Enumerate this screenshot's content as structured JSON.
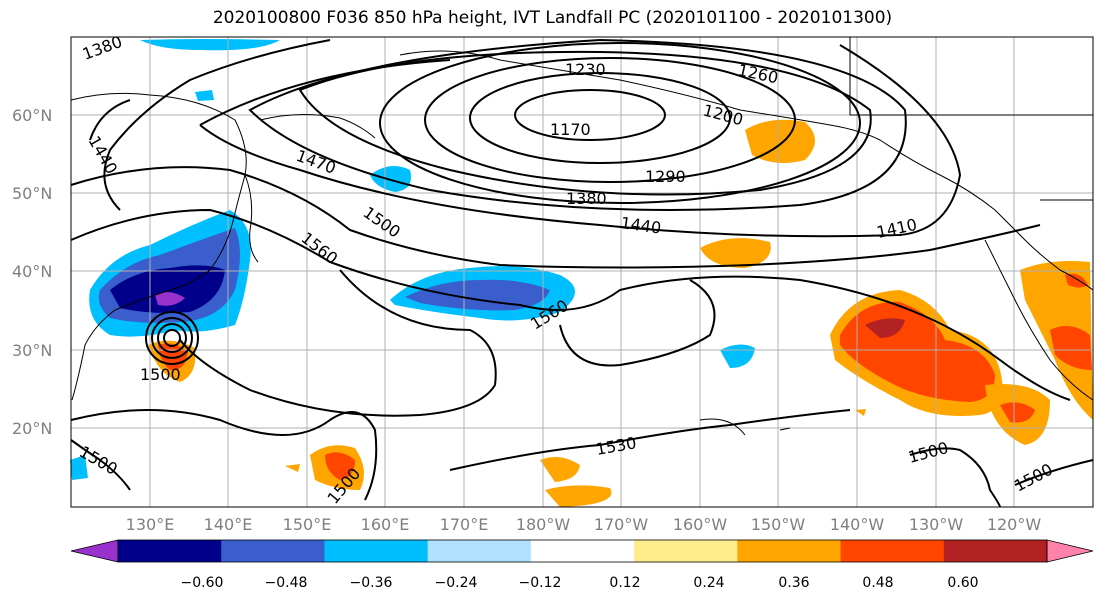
{
  "title": "2020100800 F036 850 hPa height, IVT Landfall PC (2020101100 - 2020101300)",
  "lat_labels": [
    "60°N",
    "50°N",
    "40°N",
    "30°N",
    "20°N"
  ],
  "lon_labels": [
    "130°E",
    "140°E",
    "150°E",
    "160°E",
    "170°E",
    "180°W",
    "170°W",
    "160°W",
    "150°W",
    "140°W",
    "130°W",
    "120°W"
  ],
  "contour_labels": [
    "1380",
    "1230",
    "1260",
    "1170",
    "1200",
    "1290",
    "1440",
    "1470",
    "1500",
    "1560",
    "1380",
    "1440",
    "1410",
    "1560",
    "1500",
    "1530",
    "1500",
    "1500",
    "1500",
    "1500"
  ],
  "colorbar": {
    "ticks": [
      "−0.60",
      "−0.48",
      "−0.36",
      "−0.24",
      "−0.12",
      "0.12",
      "0.24",
      "0.36",
      "0.48",
      "0.60"
    ],
    "colors": [
      "#9932cc",
      "#00008b",
      "#3a5fcd",
      "#00bfff",
      "#b0e2ff",
      "#ffffff",
      "#ffec8b",
      "#ffa500",
      "#ff4500",
      "#b22222",
      "#ff82ab"
    ]
  }
}
